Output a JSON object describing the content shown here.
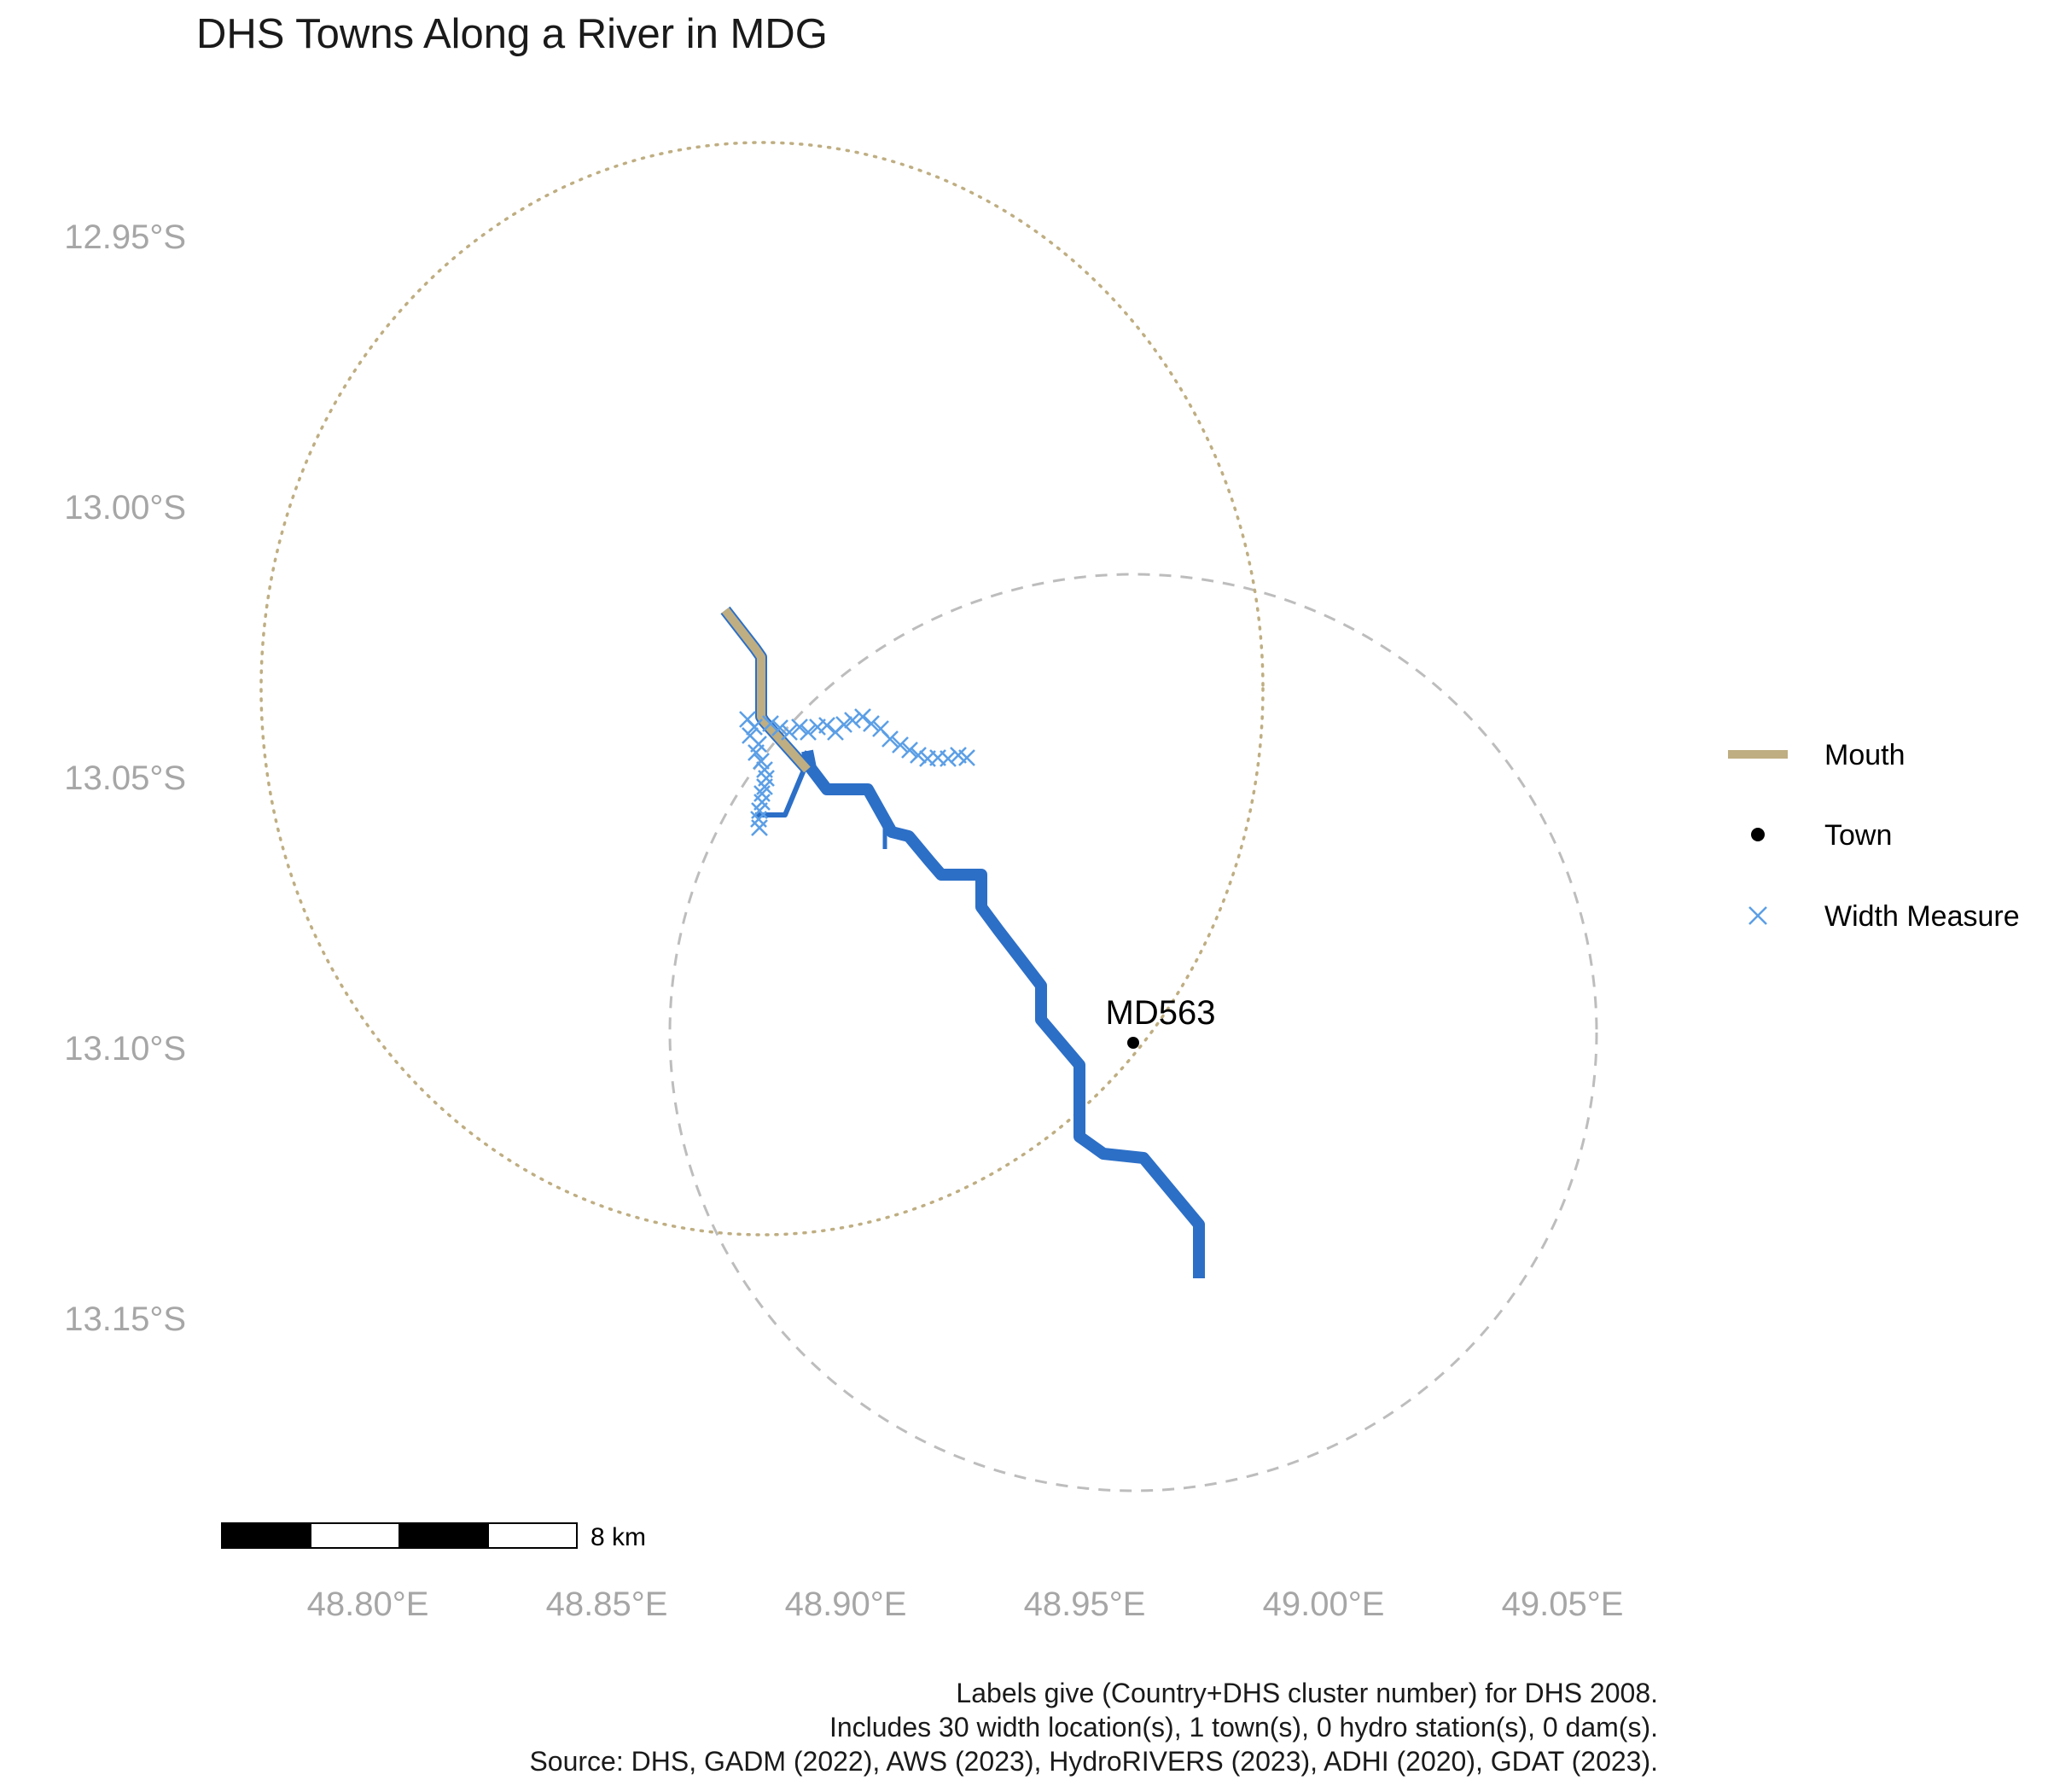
{
  "title": "DHS Towns Along a River in MDG",
  "chart_data": {
    "type": "map",
    "x_ticks": [
      "48.80°E",
      "48.85°E",
      "48.90°E",
      "48.95°E",
      "49.00°E",
      "49.05°E"
    ],
    "y_ticks": [
      "12.95°S",
      "13.00°S",
      "13.05°S",
      "13.10°S",
      "13.15°S"
    ],
    "towns": [
      {
        "label": "MD563",
        "lon": 48.958,
        "lat": -13.099
      }
    ],
    "scale_bar": {
      "label": "8 km"
    },
    "legend": {
      "mouth": "Mouth",
      "town": "Town",
      "width": "Width Measure"
    },
    "colors": {
      "river": "#2c6fc7",
      "mouth": "#bfae82",
      "width_marker": "#5c9fe6",
      "town": "#000000",
      "buffer_dashed": "#bdbdbd",
      "buffer_dotted": "#bfae82"
    },
    "caption": [
      "Labels give (Country+DHS cluster number) for DHS 2008.",
      "Includes 30 width location(s), 1 town(s), 0 hydro station(s), 0 dam(s).",
      "Source: DHS, GADM (2022), AWS (2023), HydroRIVERS (2023), ADHI (2020), GDAT (2023)."
    ]
  }
}
